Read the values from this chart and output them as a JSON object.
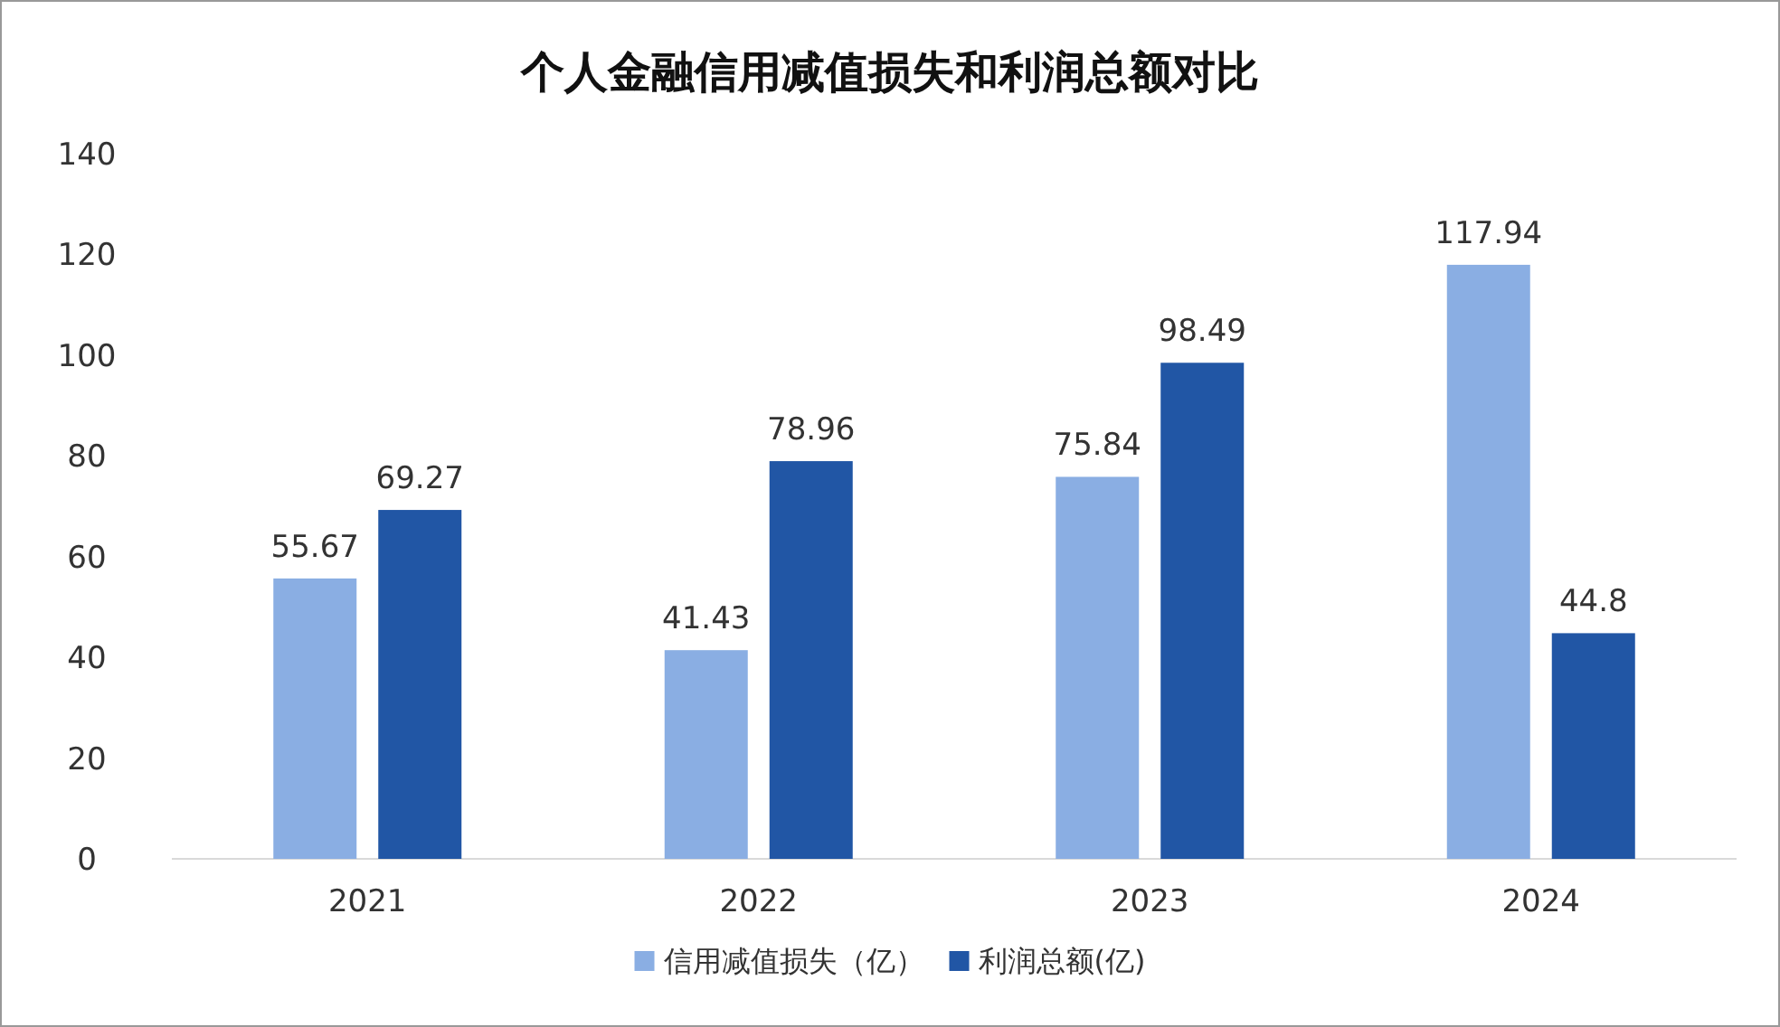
{
  "chart_data": {
    "type": "bar",
    "title": "个人金融信用减值损失和利润总额对比",
    "categories": [
      "2021",
      "2022",
      "2023",
      "2024"
    ],
    "series": [
      {
        "name": "信用减值损失（亿）",
        "color": "#8aaee3",
        "values": [
          55.67,
          41.43,
          75.84,
          117.94
        ]
      },
      {
        "name": "利润总额(亿)",
        "color": "#2156a5",
        "values": [
          69.27,
          78.96,
          98.49,
          44.8
        ]
      }
    ],
    "ylim": [
      0,
      140
    ],
    "yticks": [
      0,
      20,
      40,
      60,
      80,
      100,
      120,
      140
    ],
    "data_labels": true,
    "legend": "bottom"
  }
}
